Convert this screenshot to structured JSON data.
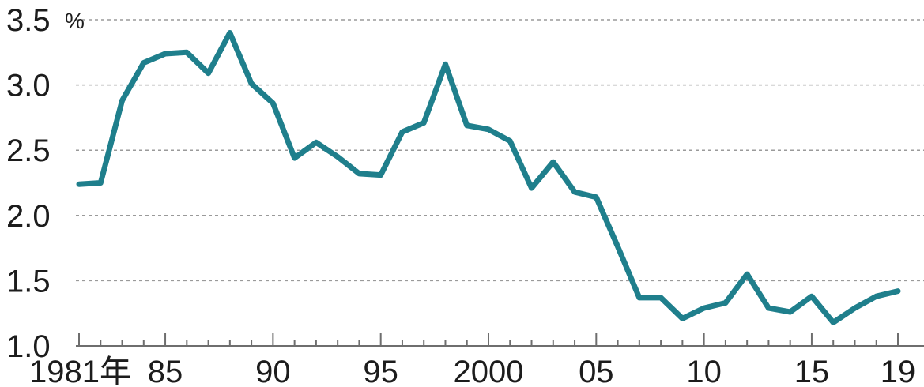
{
  "chart_data": {
    "type": "line",
    "y_unit": "%",
    "x_tick_labels": [
      "1981年",
      "85",
      "90",
      "95",
      "2000",
      "05",
      "10",
      "15",
      "19"
    ],
    "x_tick_years": [
      1981,
      1985,
      1990,
      1995,
      2000,
      2005,
      2010,
      2015,
      2019
    ],
    "y_tick_labels": [
      "1.0",
      "1.5",
      "2.0",
      "2.5",
      "3.0",
      "3.5"
    ],
    "y_tick_values": [
      1.0,
      1.5,
      2.0,
      2.5,
      3.0,
      3.5
    ],
    "xlim": [
      1981,
      2019
    ],
    "ylim": [
      1.0,
      3.5
    ],
    "grid": true,
    "color": "#1f7f8c",
    "series": [
      {
        "x": [
          1981,
          1982,
          1983,
          1984,
          1985,
          1986,
          1987,
          1988,
          1989,
          1990,
          1991,
          1992,
          1993,
          1994,
          1995,
          1996,
          1997,
          1998,
          1999,
          2000,
          2001,
          2002,
          2003,
          2004,
          2005,
          2006,
          2007,
          2008,
          2009,
          2010,
          2011,
          2012,
          2013,
          2014,
          2015,
          2016,
          2017,
          2018,
          2019
        ],
        "values": [
          2.24,
          2.25,
          2.88,
          3.17,
          3.24,
          3.25,
          3.09,
          3.4,
          3.01,
          2.86,
          2.44,
          2.56,
          2.45,
          2.32,
          2.31,
          2.64,
          2.71,
          3.16,
          2.69,
          2.66,
          2.57,
          2.21,
          2.41,
          2.18,
          2.14,
          1.76,
          1.37,
          1.37,
          1.21,
          1.29,
          1.33,
          1.55,
          1.29,
          1.26,
          1.38,
          1.18,
          1.29,
          1.38,
          1.42
        ]
      }
    ]
  }
}
